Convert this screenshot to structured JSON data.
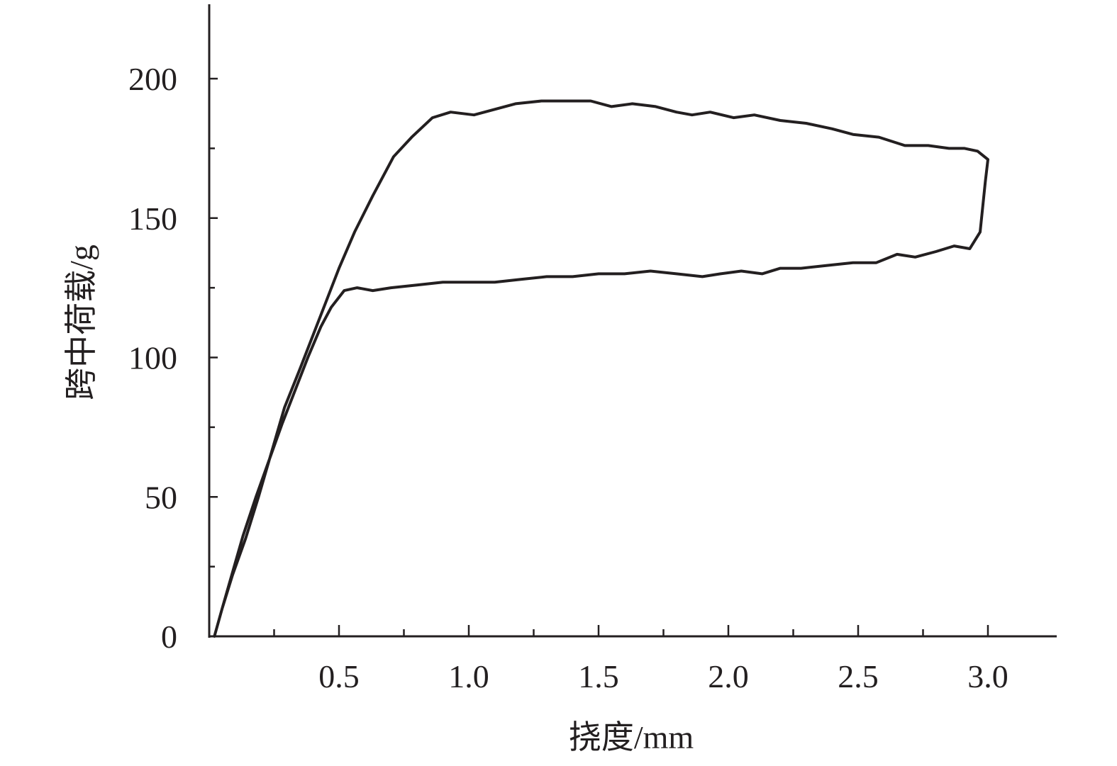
{
  "chart_data": {
    "type": "line",
    "title": "",
    "xlabel": "挠度/mm",
    "ylabel": "跨中荷载/g",
    "xlim": [
      0,
      3.25
    ],
    "ylim": [
      0,
      225
    ],
    "x_ticks": [
      "0.5",
      "1.0",
      "1.5",
      "2.0",
      "2.5",
      "3.0"
    ],
    "x_tick_values": [
      0.5,
      1.0,
      1.5,
      2.0,
      2.5,
      3.0
    ],
    "x_minor_ticks": [
      0.25,
      0.75,
      1.25,
      1.75,
      2.25,
      2.75
    ],
    "y_ticks": [
      "0",
      "50",
      "100",
      "150",
      "200"
    ],
    "y_tick_values": [
      0,
      50,
      100,
      150,
      200
    ],
    "y_minor_ticks": [
      25,
      75,
      125,
      175
    ],
    "grid": false,
    "legend": "none",
    "line_color": "#231f20",
    "series": [
      {
        "points": [
          [
            0.02,
            0
          ],
          [
            0.05,
            10
          ],
          [
            0.09,
            22
          ],
          [
            0.14,
            35
          ],
          [
            0.19,
            50
          ],
          [
            0.24,
            66
          ],
          [
            0.29,
            82
          ],
          [
            0.35,
            96
          ],
          [
            0.4,
            108
          ],
          [
            0.45,
            120
          ],
          [
            0.5,
            132
          ],
          [
            0.56,
            145
          ],
          [
            0.63,
            158
          ],
          [
            0.71,
            172
          ],
          [
            0.78,
            179
          ],
          [
            0.86,
            186
          ],
          [
            0.93,
            188
          ],
          [
            1.02,
            187
          ],
          [
            1.1,
            189
          ],
          [
            1.18,
            191
          ],
          [
            1.28,
            192
          ],
          [
            1.38,
            192
          ],
          [
            1.47,
            192
          ],
          [
            1.55,
            190
          ],
          [
            1.63,
            191
          ],
          [
            1.72,
            190
          ],
          [
            1.8,
            188
          ],
          [
            1.86,
            187
          ],
          [
            1.93,
            188
          ],
          [
            2.02,
            186
          ],
          [
            2.1,
            187
          ],
          [
            2.2,
            185
          ],
          [
            2.3,
            184
          ],
          [
            2.4,
            182
          ],
          [
            2.48,
            180
          ],
          [
            2.58,
            179
          ],
          [
            2.68,
            176
          ],
          [
            2.77,
            176
          ],
          [
            2.85,
            175
          ],
          [
            2.91,
            175
          ],
          [
            2.96,
            174
          ],
          [
            3.0,
            171
          ],
          [
            2.99,
            163
          ],
          [
            2.97,
            145
          ],
          [
            2.93,
            139
          ],
          [
            2.87,
            140
          ],
          [
            2.8,
            138
          ],
          [
            2.72,
            136
          ],
          [
            2.65,
            137
          ],
          [
            2.57,
            134
          ],
          [
            2.48,
            134
          ],
          [
            2.38,
            133
          ],
          [
            2.28,
            132
          ],
          [
            2.2,
            132
          ],
          [
            2.13,
            130
          ],
          [
            2.05,
            131
          ],
          [
            1.97,
            130
          ],
          [
            1.9,
            129
          ],
          [
            1.8,
            130
          ],
          [
            1.7,
            131
          ],
          [
            1.6,
            130
          ],
          [
            1.5,
            130
          ],
          [
            1.4,
            129
          ],
          [
            1.3,
            129
          ],
          [
            1.2,
            128
          ],
          [
            1.1,
            127
          ],
          [
            1.0,
            127
          ],
          [
            0.9,
            127
          ],
          [
            0.8,
            126
          ],
          [
            0.7,
            125
          ],
          [
            0.63,
            124
          ],
          [
            0.57,
            125
          ],
          [
            0.52,
            124
          ],
          [
            0.47,
            118
          ],
          [
            0.43,
            111
          ],
          [
            0.38,
            100
          ],
          [
            0.33,
            88
          ],
          [
            0.28,
            76
          ],
          [
            0.23,
            63
          ],
          [
            0.18,
            50
          ],
          [
            0.13,
            36
          ],
          [
            0.09,
            23
          ],
          [
            0.05,
            10
          ],
          [
            0.02,
            0
          ]
        ]
      }
    ]
  }
}
